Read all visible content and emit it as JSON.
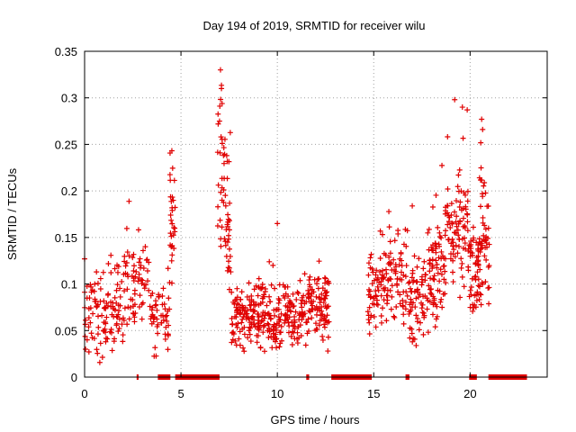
{
  "chart_data": {
    "type": "scatter",
    "title": "Day 194 of 2019, SRMTID for receiver wilu",
    "xlabel": "GPS time / hours",
    "ylabel": "SRMTID / TECUs",
    "xlim": [
      0,
      24
    ],
    "ylim": [
      0,
      0.35
    ],
    "xticks": [
      0,
      5,
      10,
      15,
      20
    ],
    "xtick_labels": [
      "0",
      "5",
      "10",
      "15",
      "20"
    ],
    "yticks": [
      0,
      0.05,
      0.1,
      0.15,
      0.2,
      0.25,
      0.3,
      0.35
    ],
    "ytick_labels": [
      "0",
      "0.05",
      "0.1",
      "0.15",
      "0.2",
      "0.25",
      "0.3",
      "0.35"
    ],
    "grid": true,
    "marker": "+",
    "color": "#e00000",
    "series": [
      {
        "name": "SRMTID",
        "segments": [
          {
            "start": 0.0,
            "end": 4.4,
            "base": 0.07,
            "spread": 0.035,
            "n": 230,
            "peak_start": 2.0,
            "peak_end": 3.4,
            "peak_boost": 0.03
          },
          {
            "start": 4.4,
            "end": 4.7,
            "base": 0.14,
            "spread": 0.05,
            "n": 30,
            "peak_start": 4.4,
            "peak_end": 4.7,
            "peak_boost": 0.02
          },
          {
            "start": 6.9,
            "end": 7.6,
            "base": 0.15,
            "spread": 0.06,
            "n": 60,
            "peak_start": 6.9,
            "peak_end": 7.3,
            "peak_boost": 0.06
          },
          {
            "start": 7.6,
            "end": 12.7,
            "base": 0.065,
            "spread": 0.025,
            "n": 380,
            "peak_start": 11.2,
            "peak_end": 12.5,
            "peak_boost": 0.01
          },
          {
            "start": 14.7,
            "end": 17.8,
            "base": 0.085,
            "spread": 0.035,
            "n": 200,
            "peak_start": 15.3,
            "peak_end": 16.8,
            "peak_boost": 0.02
          },
          {
            "start": 17.8,
            "end": 20.6,
            "base": 0.11,
            "spread": 0.045,
            "n": 220,
            "peak_start": 18.7,
            "peak_end": 19.9,
            "peak_boost": 0.05
          },
          {
            "start": 20.4,
            "end": 21.0,
            "base": 0.12,
            "spread": 0.05,
            "n": 50,
            "peak_start": 20.5,
            "peak_end": 20.9,
            "peak_boost": 0.04
          }
        ],
        "outliers": [
          {
            "x": 7.05,
            "y": 0.33
          },
          {
            "x": 7.1,
            "y": 0.31
          },
          {
            "x": 7.0,
            "y": 0.275
          },
          {
            "x": 7.08,
            "y": 0.258
          },
          {
            "x": 19.2,
            "y": 0.298
          },
          {
            "x": 19.6,
            "y": 0.29
          },
          {
            "x": 19.85,
            "y": 0.287
          },
          {
            "x": 20.6,
            "y": 0.277
          },
          {
            "x": 20.65,
            "y": 0.266
          },
          {
            "x": 10.0,
            "y": 0.165
          },
          {
            "x": 0.0,
            "y": 0.127
          },
          {
            "x": 0.05,
            "y": 0.03
          }
        ]
      }
    ],
    "zero_level_ranges": [
      [
        2.7,
        2.8
      ],
      [
        3.8,
        4.45
      ],
      [
        4.7,
        7.0
      ],
      [
        11.5,
        11.65
      ],
      [
        12.8,
        14.9
      ],
      [
        16.65,
        16.85
      ],
      [
        19.95,
        20.35
      ],
      [
        20.95,
        22.95
      ]
    ]
  }
}
